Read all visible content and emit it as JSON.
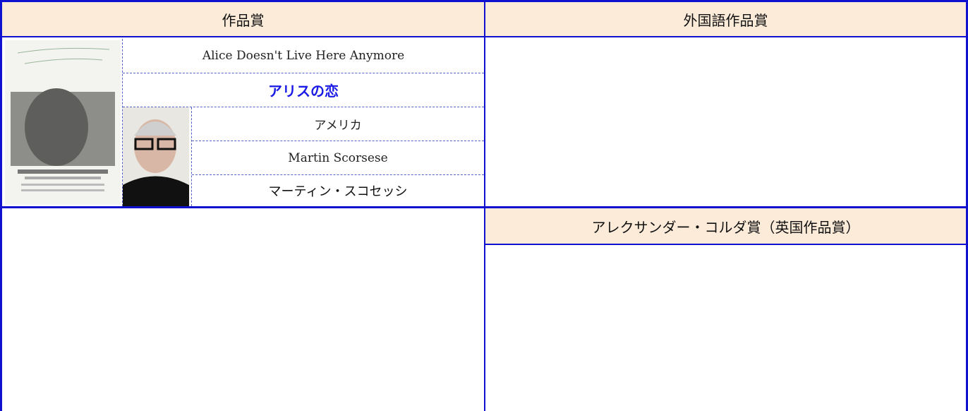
{
  "awards": [
    {
      "header": "作品賞",
      "film": {
        "title_original": "Alice Doesn't Live Here Anymore",
        "title_japanese": "アリスの恋",
        "country": "アメリカ",
        "director_original": "Martin Scorsese",
        "director_japanese": "マーティン・スコセッシ"
      }
    },
    {
      "header": "外国語作品賞"
    },
    {
      "header": "アレクサンダー・コルダ賞（英国作品賞）"
    }
  ]
}
